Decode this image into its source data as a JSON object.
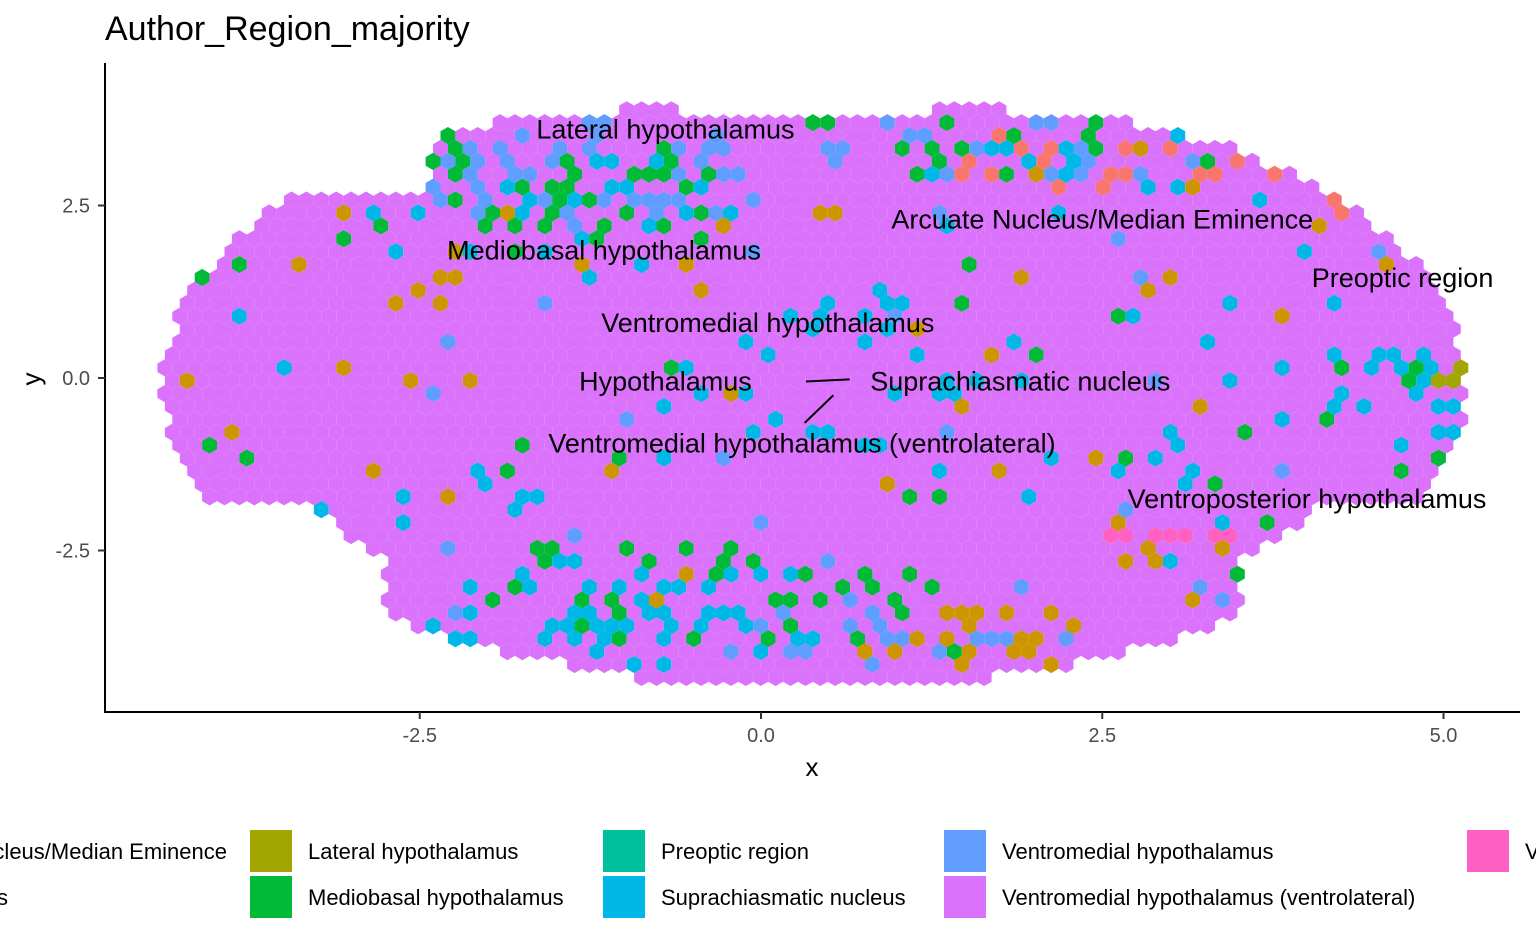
{
  "chart_data": {
    "type": "heatmap",
    "title": "Author_Region_majority",
    "xlabel": "x",
    "ylabel": "y",
    "xlim": [
      -4.8,
      5.6
    ],
    "ylim": [
      -4.9,
      4.6
    ],
    "x_ticks": [
      {
        "value": -2.5,
        "label": "-2.5"
      },
      {
        "value": 0.0,
        "label": "0.0"
      },
      {
        "value": 2.5,
        "label": "2.5"
      },
      {
        "value": 5.0,
        "label": "5.0"
      }
    ],
    "y_ticks": [
      {
        "value": 2.5,
        "label": "2.5"
      },
      {
        "value": 0.0,
        "label": "0.0"
      },
      {
        "value": -2.5,
        "label": "-2.5"
      }
    ],
    "grid": false,
    "legend_position": "bottom",
    "colors": {
      "Arcuate Nucleus/Median Eminence": "#F8766D",
      "Hypothalamus": "#CD9600",
      "Lateral hypothalamus": "#A3A500",
      "Mediobasal hypothalamus": "#00BA38",
      "Preoptic region": "#00BF9C",
      "Suprachiasmatic nucleus": "#00B8E7",
      "Ventromedial hypothalamus": "#619CFF",
      "Ventromedial hypothalamus (ventrolateral)": "#DB72FB",
      "Ventroposterior hypothalamus": "#FF61C3"
    },
    "legend": [
      {
        "label": "Arcuate Nucleus/Median Eminence",
        "color": "#F8766D"
      },
      {
        "label": "Hypothalamus",
        "color": "#CD9600"
      },
      {
        "label": "Lateral hypothalamus",
        "color": "#A3A500"
      },
      {
        "label": "Mediobasal hypothalamus",
        "color": "#00BA38"
      },
      {
        "label": "Preoptic region",
        "color": "#00BF9C"
      },
      {
        "label": "Suprachiasmatic nucleus",
        "color": "#00B8E7"
      },
      {
        "label": "Ventromedial hypothalamus",
        "color": "#619CFF"
      },
      {
        "label": "Ventromedial hypothalamus (ventrolateral)",
        "color": "#DB72FB"
      },
      {
        "label": "Ventroposterior hypothalamus",
        "color": "#FF61C3"
      }
    ],
    "cluster_labels": [
      {
        "text": "Lateral hypothalamus",
        "x": -0.7,
        "y": 3.6
      },
      {
        "text": "Arcuate Nucleus/Median Eminence",
        "x": 2.5,
        "y": 2.3
      },
      {
        "text": "Mediobasal hypothalamus",
        "x": -1.15,
        "y": 1.85
      },
      {
        "text": "Preoptic region",
        "x": 4.7,
        "y": 1.45
      },
      {
        "text": "Ventromedial hypothalamus",
        "x": 0.05,
        "y": 0.8
      },
      {
        "text": "Hypothalamus",
        "x": -0.7,
        "y": -0.05
      },
      {
        "text": "Suprachiasmatic nucleus",
        "x": 1.9,
        "y": -0.05
      },
      {
        "text": "Ventromedial hypothalamus (ventrolateral)",
        "x": 0.3,
        "y": -0.95
      },
      {
        "text": "Ventroposterior hypothalamus",
        "x": 4.0,
        "y": -1.75
      }
    ],
    "leader_lines": [
      {
        "from": [
          0.33,
          -0.05
        ],
        "to": [
          0.65,
          -0.02
        ]
      },
      {
        "from": [
          0.32,
          -0.65
        ],
        "to": [
          0.53,
          -0.25
        ]
      }
    ],
    "regions": [
      {
        "category": "Ventromedial hypothalamus",
        "cx": -1.3,
        "cy": 3.0,
        "rx": 1.5,
        "ry": 0.8,
        "density": 0.35
      },
      {
        "category": "Mediobasal hypothalamus",
        "cx": -1.5,
        "cy": 2.6,
        "rx": 1.6,
        "ry": 0.9,
        "density": 0.14
      },
      {
        "category": "Hypothalamus",
        "cx": -2.4,
        "cy": 1.5,
        "rx": 0.6,
        "ry": 0.5,
        "density": 0.16
      },
      {
        "category": "Suprachiasmatic nucleus",
        "cx": -1.5,
        "cy": 2.3,
        "rx": 1.4,
        "ry": 1.0,
        "density": 0.13
      },
      {
        "category": "Arcuate Nucleus/Median Eminence",
        "cx": 2.6,
        "cy": 3.2,
        "rx": 2.0,
        "ry": 0.45,
        "density": 0.32
      },
      {
        "category": "Ventromedial hypothalamus",
        "cx": 2.1,
        "cy": 3.5,
        "rx": 2.2,
        "ry": 0.6,
        "density": 0.16
      },
      {
        "category": "Mediobasal hypothalamus",
        "cx": 2.5,
        "cy": 3.5,
        "rx": 2.6,
        "ry": 0.7,
        "density": 0.12
      },
      {
        "category": "Suprachiasmatic nucleus",
        "cx": 3.2,
        "cy": 3.0,
        "rx": 2.0,
        "ry": 0.6,
        "density": 0.1
      },
      {
        "category": "Arcuate Nucleus/Median Eminence",
        "cx": 4.6,
        "cy": 2.5,
        "rx": 0.5,
        "ry": 0.35,
        "density": 0.5
      },
      {
        "category": "Preoptic region",
        "cx": 5.0,
        "cy": 2.3,
        "rx": 0.4,
        "ry": 0.5,
        "density": 0.55
      },
      {
        "category": "Suprachiasmatic nucleus",
        "cx": 4.8,
        "cy": -0.3,
        "rx": 0.45,
        "ry": 0.8,
        "density": 0.4
      },
      {
        "category": "Lateral hypothalamus",
        "cx": 5.1,
        "cy": 0.0,
        "rx": 0.25,
        "ry": 0.15,
        "density": 0.6
      },
      {
        "category": "Suprachiasmatic nucleus",
        "cx": -0.8,
        "cy": -3.4,
        "rx": 1.7,
        "ry": 0.9,
        "density": 0.3
      },
      {
        "category": "Ventromedial hypothalamus",
        "cx": 0.8,
        "cy": -3.8,
        "rx": 1.6,
        "ry": 0.6,
        "density": 0.15
      },
      {
        "category": "Hypothalamus",
        "cx": 1.6,
        "cy": -3.8,
        "rx": 0.9,
        "ry": 0.5,
        "density": 0.18
      },
      {
        "category": "Mediobasal hypothalamus",
        "cx": -0.5,
        "cy": -3.2,
        "rx": 1.8,
        "ry": 1.0,
        "density": 0.1
      },
      {
        "category": "Hypothalamus",
        "cx": 3.0,
        "cy": -2.4,
        "rx": 0.6,
        "ry": 0.5,
        "density": 0.35
      },
      {
        "category": "Ventroposterior hypothalamus",
        "cx": 3.0,
        "cy": -2.25,
        "rx": 0.5,
        "ry": 0.12,
        "density": 0.85
      },
      {
        "category": "Suprachiasmatic nucleus",
        "cx": 0.8,
        "cy": 0.1,
        "rx": 1.5,
        "ry": 1.2,
        "density": 0.12
      },
      {
        "category": "Suprachiasmatic nucleus",
        "cx": 3.0,
        "cy": 0.0,
        "rx": 1.6,
        "ry": 1.6,
        "density": 0.06
      },
      {
        "category": "Suprachiasmatic nucleus",
        "cx": -2.5,
        "cy": -1.6,
        "rx": 1.4,
        "ry": 1.0,
        "density": 0.05
      },
      {
        "category": "Mediobasal hypothalamus",
        "cx": -2.6,
        "cy": -1.0,
        "rx": 1.3,
        "ry": 0.6,
        "density": 0.05
      }
    ]
  }
}
